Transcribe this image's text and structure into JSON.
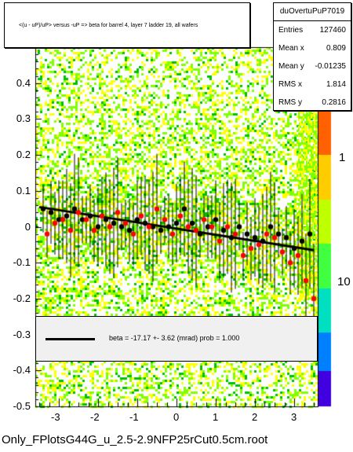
{
  "title": "<(u - uP)/uP> versus -uP => beta for barrel 4, layer 7 ladder 19, all wafers",
  "stats": {
    "name": "duOvertuPuP7019",
    "rows": [
      {
        "label": "Entries",
        "value": "127460"
      },
      {
        "label": "Mean x",
        "value": "0.809"
      },
      {
        "label": "Mean y",
        "value": "-0.01235"
      },
      {
        "label": "RMS x",
        "value": "1.814"
      },
      {
        "label": "RMS y",
        "value": "0.2816"
      }
    ]
  },
  "legend": {
    "text": "beta =  -17.17 +-  3.62 (mrad) prob = 1.000"
  },
  "footer": "Only_FPlotsG44G_u_2.5-2.9NFP25rCut0.5cm.root",
  "colors": {
    "heatmap_low": "#ffff00",
    "heatmap_mid": "#7fff00",
    "heatmap_high": "#00c000",
    "profile_black": "#000000",
    "profile_red": "#ff0000",
    "fit_line": "#000000"
  },
  "chart_data": {
    "type": "heatmap",
    "xlim": [
      -3.6,
      3.6
    ],
    "ylim": [
      -0.5,
      0.5
    ],
    "x_ticks": [
      -3,
      -2,
      -1,
      0,
      1,
      2,
      3
    ],
    "y_ticks": [
      -0.5,
      -0.4,
      -0.3,
      -0.2,
      -0.1,
      0,
      0.1,
      0.2,
      0.3,
      0.4
    ],
    "z_scale": "log",
    "z_tick_labels": [
      "1",
      "10"
    ],
    "fit": {
      "x": [
        -3.5,
        3.5
      ],
      "y": [
        0.055,
        -0.065
      ]
    },
    "series": [
      {
        "name": "profile-black",
        "x": [
          -3.4,
          -3.2,
          -3.0,
          -2.8,
          -2.6,
          -2.4,
          -2.2,
          -2.0,
          -1.8,
          -1.6,
          -1.4,
          -1.2,
          -1.0,
          -0.8,
          -0.6,
          -0.4,
          -0.2,
          0.0,
          0.2,
          0.4,
          0.6,
          0.8,
          1.0,
          1.2,
          1.4,
          1.6,
          1.8,
          2.0,
          2.2,
          2.4,
          2.6,
          2.8,
          3.0,
          3.2,
          3.4
        ],
        "y": [
          0.05,
          0.04,
          0.02,
          0.03,
          0.05,
          0.02,
          0.03,
          0.0,
          0.02,
          0.01,
          0.0,
          -0.01,
          0.02,
          0.01,
          0.0,
          -0.01,
          0.0,
          0.01,
          0.05,
          0.01,
          -0.02,
          0.0,
          0.02,
          -0.01,
          -0.03,
          0.0,
          -0.02,
          -0.03,
          -0.04,
          0.0,
          -0.02,
          -0.03,
          -0.06,
          -0.04,
          -0.02
        ]
      },
      {
        "name": "profile-red",
        "x": [
          -3.3,
          -3.1,
          -2.9,
          -2.7,
          -2.5,
          -2.3,
          -2.1,
          -1.9,
          -1.7,
          -1.5,
          -1.3,
          -1.1,
          -0.9,
          -0.7,
          -0.5,
          -0.3,
          -0.1,
          0.1,
          0.3,
          0.5,
          0.7,
          0.9,
          1.1,
          1.3,
          1.5,
          1.7,
          1.9,
          2.1,
          2.3,
          2.5,
          2.7,
          2.9,
          3.1,
          3.3,
          3.5
        ],
        "y": [
          -0.02,
          0.01,
          0.02,
          -0.01,
          0.04,
          0.02,
          -0.01,
          0.03,
          0.0,
          0.04,
          0.01,
          -0.02,
          0.03,
          0.0,
          0.05,
          0.02,
          -0.02,
          0.03,
          0.0,
          -0.01,
          0.02,
          0.0,
          -0.04,
          0.0,
          -0.02,
          -0.08,
          -0.06,
          -0.05,
          -0.02,
          -0.03,
          -0.07,
          -0.1,
          -0.08,
          -0.15,
          -0.2
        ]
      }
    ]
  }
}
